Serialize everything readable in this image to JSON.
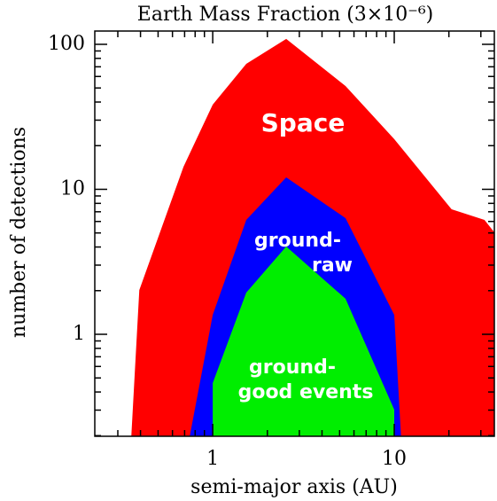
{
  "chart_data": {
    "type": "area",
    "title": "Earth Mass Fraction (3×10⁻⁶)",
    "xlabel": "semi-major axis (AU)",
    "ylabel": "number of detections",
    "xscale": "log",
    "yscale": "log",
    "xlim": [
      0.224,
      35.6
    ],
    "ylim": [
      0.198,
      123.5
    ],
    "xticks": [
      1,
      10
    ],
    "yticks": [
      1,
      10,
      100
    ],
    "xticks_minor": [
      0.3,
      0.4,
      0.5,
      0.6,
      0.7,
      0.8,
      0.9,
      2,
      3,
      4,
      5,
      6,
      7,
      8,
      9,
      20,
      30
    ],
    "yticks_minor": [
      0.2,
      0.3,
      0.4,
      0.5,
      0.6,
      0.7,
      0.8,
      0.9,
      2,
      3,
      4,
      5,
      6,
      7,
      8,
      9,
      20,
      30,
      40,
      50,
      60,
      70,
      80,
      90
    ],
    "series": [
      {
        "color": "#ff0000",
        "x": [
          0.356,
          0.394,
          0.69,
          1,
          1.53,
          2.54,
          5.39,
          10,
          20.7,
          31.4,
          35.6
        ],
        "values": [
          0.198,
          2.02,
          14.3,
          38.4,
          73.3,
          109,
          51.6,
          22.2,
          7.28,
          6.15,
          5.05
        ]
      },
      {
        "color": "#0000ff",
        "x": [
          0.747,
          1,
          1.53,
          2.54,
          5.39,
          10,
          10.9
        ],
        "values": [
          0.198,
          1.36,
          6.15,
          12.1,
          6.33,
          1.36,
          0.198
        ]
      },
      {
        "color": "#00ee00",
        "x": [
          1,
          1,
          1.53,
          2.54,
          5.39,
          10,
          10
        ],
        "values": [
          0.198,
          0.461,
          1.94,
          4.03,
          1.76,
          0.302,
          0.198
        ]
      }
    ],
    "annotations": [
      "Space",
      "ground-",
      "raw",
      "ground-",
      "good events"
    ]
  }
}
